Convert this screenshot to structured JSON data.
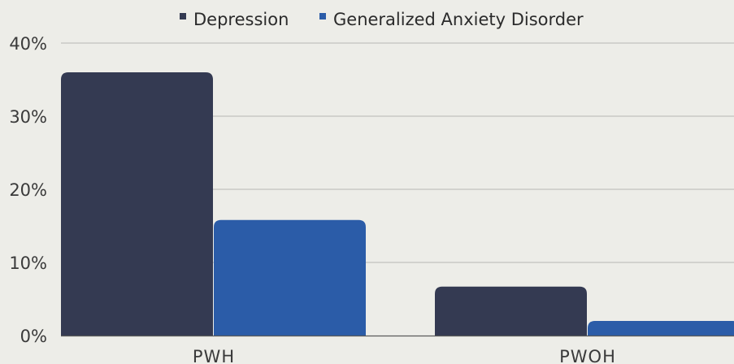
{
  "chart_data": {
    "type": "bar",
    "title": "",
    "xlabel": "",
    "ylabel": "",
    "categories": [
      "PWH",
      "PWOH"
    ],
    "series": [
      {
        "name": "Depression",
        "values": [
          36,
          6.7
        ],
        "color": "#343a52"
      },
      {
        "name": "Generalized Anxiety Disorder",
        "values": [
          15.8,
          2
        ],
        "color": "#2b5ca8"
      }
    ],
    "ylim": [
      0,
      40
    ],
    "y_ticks": [
      0,
      10,
      20,
      30,
      40
    ],
    "y_tick_labels": [
      "0%",
      "10%",
      "20%",
      "30%",
      "40%"
    ],
    "legend_position": "top-center",
    "grid": true
  }
}
